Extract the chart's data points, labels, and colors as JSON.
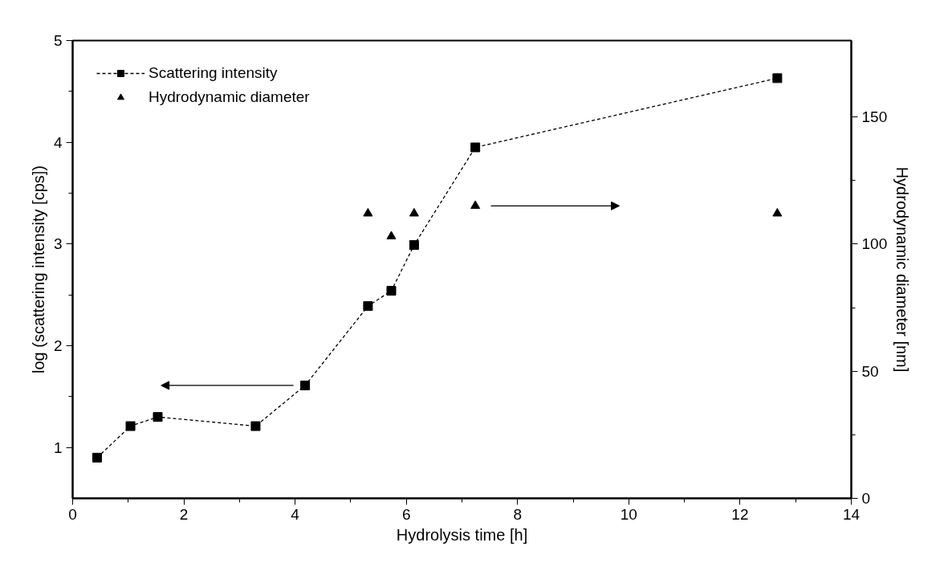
{
  "chart_data": {
    "type": "line",
    "xlabel": "Hydrolysis time [h]",
    "ylabel": "log (scattering intensity [cps])",
    "y2label": "Hydrodynamic diameter [nm]",
    "xlim": [
      0,
      14
    ],
    "xticks": [
      0,
      2,
      4,
      6,
      8,
      10,
      12,
      14
    ],
    "ylim": [
      0.5,
      5
    ],
    "yticks": [
      1,
      2,
      3,
      4,
      5
    ],
    "y2lim": [
      0,
      180
    ],
    "y2ticks": [
      0,
      50,
      100,
      150
    ],
    "grid": false,
    "legend": "top left",
    "series": [
      {
        "name": "Scattering intensity",
        "color": "#000000",
        "marker": "square",
        "line_style": "dashed",
        "x": [
          0.44,
          1.04,
          1.53,
          3.29,
          4.18,
          5.31,
          5.73,
          6.14,
          7.24,
          12.67
        ],
        "values": [
          0.9,
          1.21,
          1.3,
          1.21,
          1.61,
          2.39,
          2.54,
          2.99,
          3.95,
          4.63
        ]
      },
      {
        "name": "Hydrodynamic diameter",
        "type": "scatter",
        "axis": "y2",
        "color": "#000000",
        "marker": "triangle",
        "x": [
          5.31,
          5.73,
          6.14,
          7.24,
          12.67
        ],
        "values": [
          112,
          103,
          112,
          115,
          112
        ]
      }
    ]
  }
}
